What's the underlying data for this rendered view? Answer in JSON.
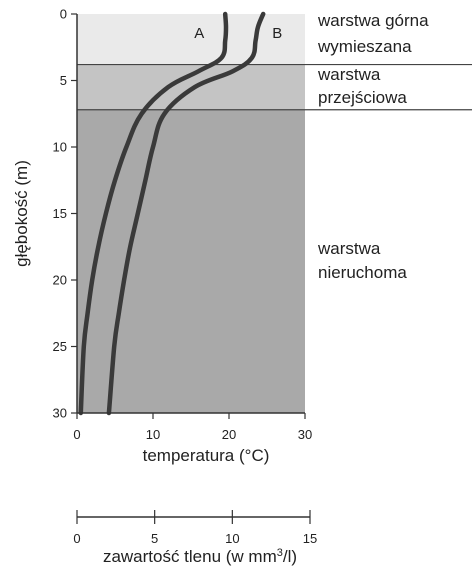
{
  "chart_data": {
    "type": "line",
    "title": "",
    "ylabel": "głębokość (m)",
    "xlabel": "temperatura (°C)",
    "ylim": [
      0,
      30
    ],
    "xlim": [
      0,
      30
    ],
    "y_ticks": [
      0,
      5,
      10,
      15,
      20,
      25,
      30
    ],
    "x_ticks": [
      0,
      10,
      20,
      30
    ],
    "secondary_x_axis": {
      "label_prefix": "zawartość tlenu (w mm",
      "label_sup": "3",
      "label_suffix": "/l)",
      "range": [
        0,
        15
      ],
      "ticks": [
        0,
        5,
        10,
        15
      ]
    },
    "zones": [
      {
        "label_lines": [
          "warstwa górna",
          "wymieszana"
        ],
        "y_from": 0,
        "y_to": 3.8,
        "color": "#eaeaea"
      },
      {
        "label_lines": [
          "warstwa",
          "przejściowa"
        ],
        "y_from": 3.8,
        "y_to": 7.2,
        "color": "#c4c4c4"
      },
      {
        "label_lines": [
          "warstwa",
          "nieruchoma"
        ],
        "y_from": 7.2,
        "y_to": 30,
        "color": "#a9a9a9"
      }
    ],
    "series": [
      {
        "name": "A",
        "x": [
          19.5,
          19.6,
          19.5,
          19.0,
          16.0,
          12.0,
          8.5,
          6.5,
          5.0,
          3.8,
          2.8,
          2.0,
          1.4,
          0.9,
          0.5
        ],
        "y": [
          0,
          1.0,
          2.0,
          3.3,
          4.3,
          5.5,
          7.5,
          10.0,
          12.5,
          15.0,
          17.5,
          20.0,
          22.5,
          25.0,
          30.0
        ]
      },
      {
        "name": "B",
        "x": [
          24.5,
          23.8,
          23.5,
          23.0,
          20.5,
          15.5,
          11.5,
          10.0,
          9.0,
          8.0,
          7.0,
          6.2,
          5.5,
          4.9,
          4.2
        ],
        "y": [
          0,
          1.0,
          2.0,
          3.3,
          4.3,
          5.5,
          7.5,
          10.0,
          12.5,
          15.0,
          17.5,
          20.0,
          22.5,
          25.0,
          30.0
        ]
      }
    ],
    "colors": {
      "curve": "#3a3a3a",
      "axis": "#333333",
      "zone_line": "#444444"
    },
    "grid": false
  }
}
